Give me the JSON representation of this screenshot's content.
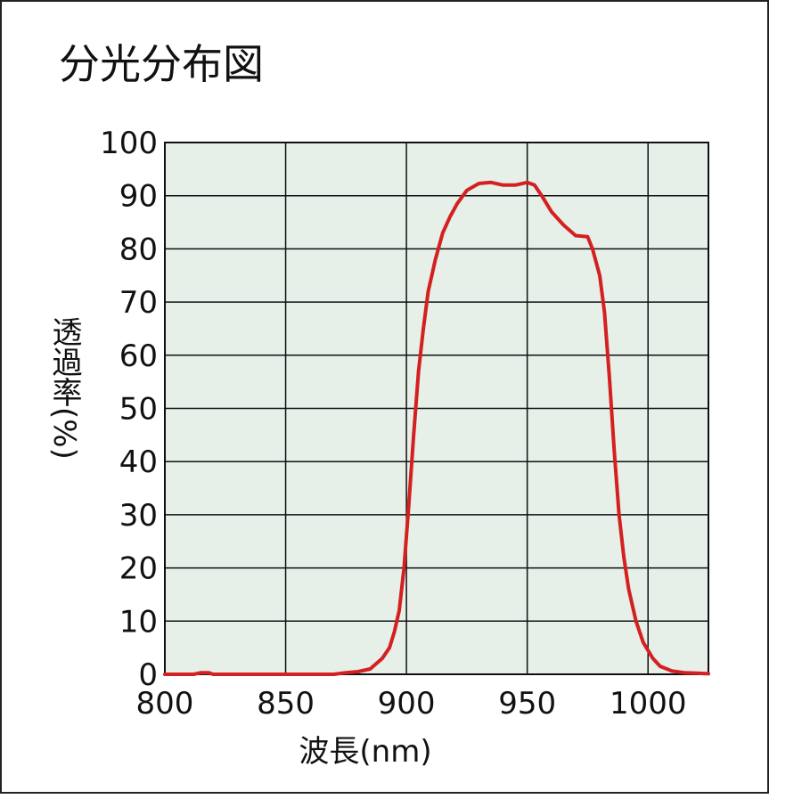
{
  "chart_data": {
    "type": "line",
    "title": "分光分布図",
    "x_label": "波長(nm)",
    "y_label": "透過率(%)",
    "x": [
      800,
      812,
      815,
      818,
      820,
      870,
      875,
      880,
      885,
      890,
      893,
      895,
      897,
      899,
      901,
      903,
      905,
      907,
      909,
      912,
      915,
      918,
      921,
      925,
      930,
      935,
      940,
      945,
      950,
      953,
      956,
      960,
      965,
      970,
      975,
      977,
      980,
      982,
      984,
      986,
      988,
      990,
      992,
      995,
      998,
      1002,
      1005,
      1010,
      1015,
      1020,
      1025
    ],
    "series": [
      {
        "name": "透過率",
        "color": "#d42020",
        "values": [
          0,
          0,
          0.3,
          0.3,
          0,
          0,
          0.3,
          0.5,
          1,
          3,
          5,
          8,
          12,
          20,
          32,
          45,
          57,
          65,
          72,
          78,
          83,
          86,
          88.5,
          91,
          92.3,
          92.5,
          92,
          92,
          92.5,
          92,
          90,
          87,
          84.5,
          82.5,
          82.3,
          80,
          75,
          68,
          56,
          42,
          30,
          22,
          16,
          10,
          6,
          3,
          1.5,
          0.6,
          0.3,
          0.2,
          0.1
        ]
      }
    ],
    "xlim": [
      800,
      1025
    ],
    "ylim": [
      0,
      100
    ],
    "xticks": [
      800,
      850,
      900,
      950,
      1000
    ],
    "yticks": [
      0,
      10,
      20,
      30,
      40,
      50,
      60,
      70,
      80,
      90,
      100
    ],
    "grid": true
  }
}
